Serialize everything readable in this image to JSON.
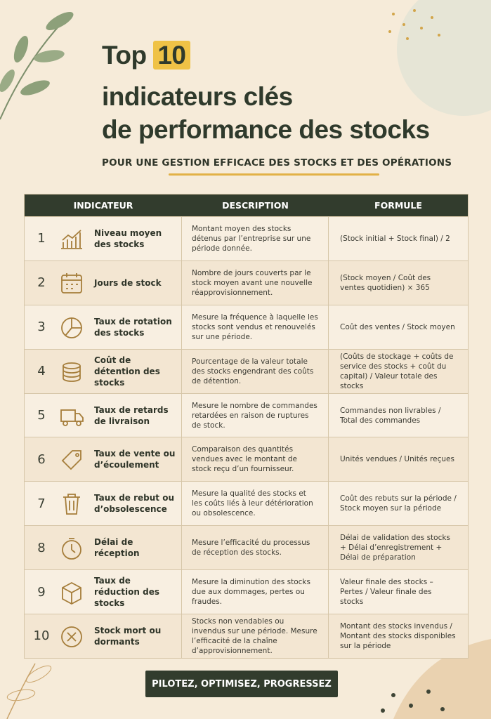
{
  "header": {
    "title_top": "Top",
    "title_number": "10",
    "title_line2": "indicateurs clés",
    "title_line3": "de performance des stocks",
    "subtitle": "POUR UNE GESTION EFFICACE DES STOCKS ET DES OPÉRATIONS"
  },
  "table": {
    "columns": [
      "INDICATEUR",
      "DESCRIPTION",
      "FORMULE"
    ],
    "rows": [
      [
        1,
        "Niveau moyen des stocks",
        "Montant moyen des stocks détenus par l’entreprise sur une période donnée.",
        "(Stock initial + Stock final) / 2"
      ],
      [
        2,
        "Jours de stock",
        "Nombre de jours couverts par le stock moyen avant une nouvelle réapprovisionnement.",
        "(Stock moyen / Coût des ventes quotidien) × 365"
      ],
      [
        3,
        "Taux de rotation des stocks",
        "Mesure la fréquence à laquelle les stocks sont vendus et renouvelés sur une période.",
        "Coût des ventes / Stock moyen"
      ],
      [
        4,
        "Coût de détention des stocks",
        "Pourcentage de la valeur totale des stocks engendrant des coûts de détention.",
        "(Coûts de stockage + coûts de service des stocks + coût du capital) / Valeur totale des stocks"
      ],
      [
        5,
        "Taux de retards de livraison",
        "Mesure le nombre de commandes retardées en raison de ruptures de stock.",
        "Commandes non livrables / Total des commandes"
      ],
      [
        6,
        "Taux de vente ou d’écoulement",
        "Comparaison des quantités vendues avec le montant de stock reçu d’un fournisseur.",
        "Unités vendues / Unités reçues"
      ],
      [
        7,
        "Taux de rebut ou d’obsolescence",
        "Mesure la qualité des stocks et les coûts liés à leur détérioration ou obsolescence.",
        "Coût des rebuts sur la période / Stock moyen sur la période"
      ],
      [
        8,
        "Délai de réception",
        "Mesure l’efficacité du processus de réception des stocks.",
        "Délai de validation des stocks + Délai d’enregistrement + Délai de préparation"
      ],
      [
        9,
        "Taux de réduction des stocks",
        "Mesure la diminution des stocks due aux dommages, pertes ou fraudes.",
        "Valeur finale des stocks – Pertes / Valeur finale des stocks"
      ],
      [
        10,
        "Stock mort ou dormants",
        "Stocks non vendables ou invendus sur une période. Mesure l’efficacité de la chaîne d’approvisionnement.",
        "Montant des stocks invendus / Montant des stocks disponibles sur la période"
      ]
    ]
  },
  "footer": {
    "button": "PILOTEZ, OPTIMISEZ, PROGRESSEZ"
  }
}
